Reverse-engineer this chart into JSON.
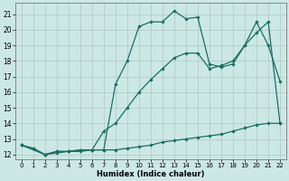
{
  "xlabel": "Humidex (Indice chaleur)",
  "background_color": "#cce8e4",
  "grid_color": "#b0c8c4",
  "line_color": "#1a6e64",
  "xlim": [
    -0.5,
    22.5
  ],
  "ylim": [
    11.7,
    21.7
  ],
  "xticks": [
    0,
    1,
    2,
    3,
    4,
    5,
    6,
    7,
    8,
    9,
    10,
    11,
    12,
    13,
    14,
    15,
    16,
    17,
    18,
    19,
    20,
    21,
    22
  ],
  "yticks": [
    12,
    13,
    14,
    15,
    16,
    17,
    18,
    19,
    20,
    21
  ],
  "line1_x": [
    0,
    1,
    2,
    3,
    4,
    5,
    6,
    7,
    8,
    9,
    10,
    11,
    12,
    13,
    14,
    15,
    16,
    17,
    18,
    19,
    20,
    21,
    22
  ],
  "line1_y": [
    12.6,
    12.4,
    12.0,
    12.2,
    12.2,
    12.3,
    12.3,
    12.3,
    16.5,
    18.0,
    20.2,
    20.5,
    20.5,
    21.2,
    20.7,
    20.8,
    17.8,
    17.6,
    17.8,
    19.0,
    20.5,
    19.0,
    16.7
  ],
  "line2_x": [
    0,
    2,
    3,
    4,
    5,
    6,
    7,
    8,
    9,
    10,
    11,
    12,
    13,
    14,
    15,
    16,
    17,
    18,
    19,
    20,
    21,
    22
  ],
  "line2_y": [
    12.6,
    12.0,
    12.2,
    12.2,
    12.3,
    12.3,
    13.5,
    14.0,
    15.0,
    16.0,
    16.8,
    17.5,
    18.2,
    18.5,
    18.5,
    17.5,
    17.7,
    18.0,
    19.0,
    19.8,
    20.5,
    14.0
  ],
  "line3_x": [
    0,
    1,
    2,
    3,
    4,
    5,
    6,
    7,
    8,
    9,
    10,
    11,
    12,
    13,
    14,
    15,
    16,
    17,
    18,
    19,
    20,
    21,
    22
  ],
  "line3_y": [
    12.6,
    12.4,
    12.0,
    12.1,
    12.2,
    12.2,
    12.3,
    12.3,
    12.3,
    12.4,
    12.5,
    12.6,
    12.8,
    12.9,
    13.0,
    13.1,
    13.2,
    13.3,
    13.5,
    13.7,
    13.9,
    14.0,
    14.0
  ]
}
